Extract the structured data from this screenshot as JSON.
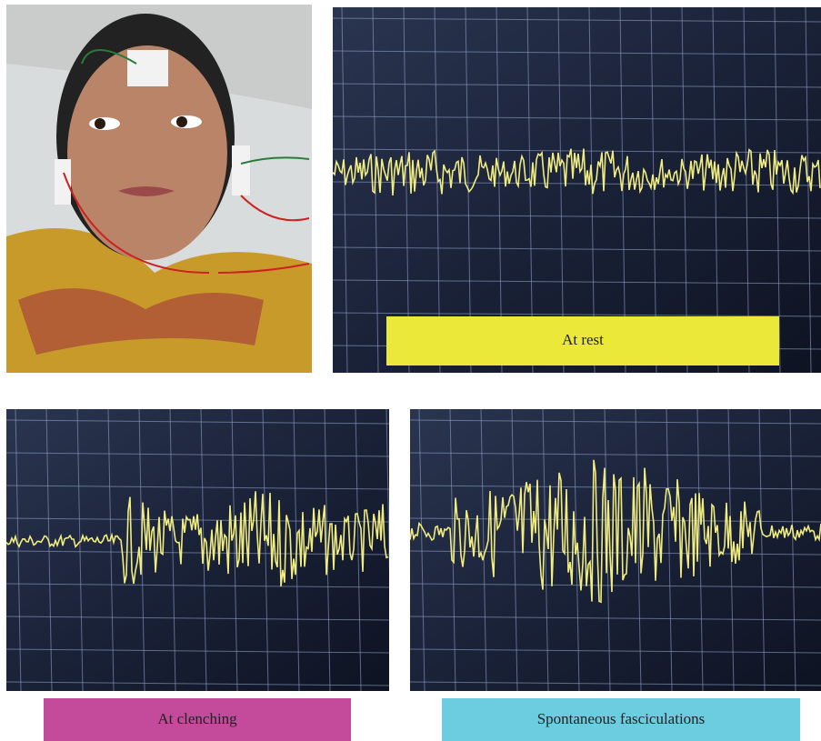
{
  "panels": [
    {
      "label": "At rest"
    },
    {
      "label": "At clenching"
    },
    {
      "label": "Spontaneous fasciculations"
    }
  ]
}
